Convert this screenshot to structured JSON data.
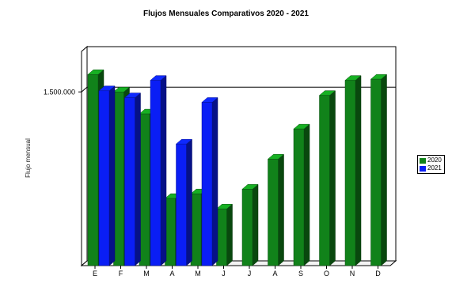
{
  "chart_data": {
    "type": "bar",
    "title": "Flujos Mensuales Comparativos 2020 - 2021",
    "xlabel": "",
    "ylabel": "Flujo mensual",
    "y_tick_values": [
      1500000
    ],
    "y_tick_labels": [
      "1.500.000"
    ],
    "ylim": [
      0,
      1850000
    ],
    "categories": [
      "E",
      "F",
      "M",
      "A",
      "M",
      "J",
      "J",
      "A",
      "S",
      "O",
      "N",
      "D"
    ],
    "series": [
      {
        "name": "2020",
        "color": "#11821a",
        "values": [
          1650000,
          1500000,
          1310000,
          580000,
          620000,
          490000,
          660000,
          920000,
          1180000,
          1470000,
          1600000,
          1610000
        ]
      },
      {
        "name": "2021",
        "color": "#0a1ef5",
        "values": [
          1510000,
          1450000,
          1600000,
          1050000,
          1410000,
          null,
          null,
          null,
          null,
          null,
          null,
          null
        ]
      }
    ],
    "legend_position": "right",
    "grid": true,
    "style": "3d"
  }
}
